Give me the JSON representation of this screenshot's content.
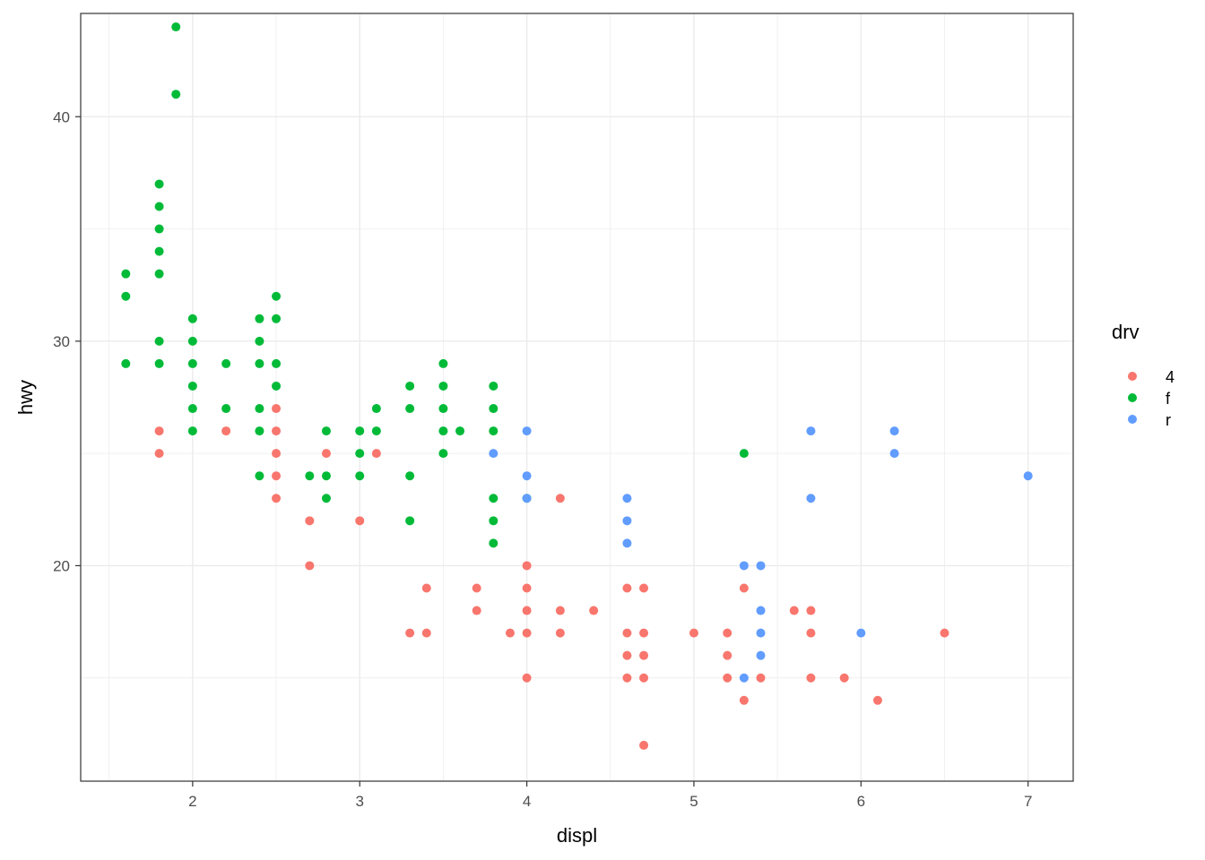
{
  "chart_data": {
    "type": "scatter",
    "xlabel": "displ",
    "ylabel": "hwy",
    "xlim": [
      1.33,
      7.27
    ],
    "ylim": [
      10.4,
      44.6
    ],
    "x_ticks": [
      2,
      3,
      4,
      5,
      6,
      7
    ],
    "y_ticks": [
      20,
      30,
      40
    ],
    "grid": true,
    "legend": {
      "title": "drv",
      "position": "right",
      "entries": [
        {
          "label": "4",
          "color": "#F8766D"
        },
        {
          "label": "f",
          "color": "#00BA38"
        },
        {
          "label": "r",
          "color": "#619CFF"
        }
      ]
    },
    "series": [
      {
        "name": "4",
        "color": "#F8766D",
        "points": [
          [
            1.8,
            26
          ],
          [
            1.8,
            25
          ],
          [
            2.2,
            26
          ],
          [
            2.5,
            27
          ],
          [
            2.5,
            26
          ],
          [
            2.5,
            25
          ],
          [
            2.5,
            24
          ],
          [
            2.5,
            23
          ],
          [
            2.7,
            22
          ],
          [
            2.7,
            20
          ],
          [
            2.8,
            25
          ],
          [
            3.0,
            22
          ],
          [
            3.1,
            25
          ],
          [
            3.3,
            17
          ],
          [
            3.4,
            19
          ],
          [
            3.4,
            17
          ],
          [
            3.7,
            19
          ],
          [
            3.7,
            18
          ],
          [
            3.9,
            17
          ],
          [
            4.0,
            20
          ],
          [
            4.0,
            19
          ],
          [
            4.0,
            18
          ],
          [
            4.0,
            17
          ],
          [
            4.0,
            15
          ],
          [
            4.2,
            23
          ],
          [
            4.2,
            18
          ],
          [
            4.2,
            17
          ],
          [
            4.4,
            18
          ],
          [
            4.6,
            19
          ],
          [
            4.6,
            17
          ],
          [
            4.6,
            16
          ],
          [
            4.6,
            15
          ],
          [
            4.7,
            19
          ],
          [
            4.7,
            17
          ],
          [
            4.7,
            16
          ],
          [
            4.7,
            15
          ],
          [
            4.7,
            12
          ],
          [
            5.0,
            17
          ],
          [
            5.2,
            17
          ],
          [
            5.2,
            16
          ],
          [
            5.2,
            15
          ],
          [
            5.3,
            19
          ],
          [
            5.3,
            14
          ],
          [
            5.4,
            15
          ],
          [
            5.6,
            18
          ],
          [
            5.7,
            18
          ],
          [
            5.7,
            17
          ],
          [
            5.7,
            15
          ],
          [
            5.9,
            15
          ],
          [
            6.1,
            14
          ],
          [
            6.5,
            17
          ]
        ]
      },
      {
        "name": "f",
        "color": "#00BA38",
        "points": [
          [
            1.6,
            33
          ],
          [
            1.6,
            32
          ],
          [
            1.6,
            29
          ],
          [
            1.8,
            37
          ],
          [
            1.8,
            36
          ],
          [
            1.8,
            35
          ],
          [
            1.8,
            34
          ],
          [
            1.8,
            33
          ],
          [
            1.8,
            30
          ],
          [
            1.8,
            29
          ],
          [
            1.9,
            44
          ],
          [
            1.9,
            41
          ],
          [
            2.0,
            31
          ],
          [
            2.0,
            30
          ],
          [
            2.0,
            29
          ],
          [
            2.0,
            28
          ],
          [
            2.0,
            27
          ],
          [
            2.0,
            26
          ],
          [
            2.2,
            29
          ],
          [
            2.2,
            27
          ],
          [
            2.4,
            31
          ],
          [
            2.4,
            30
          ],
          [
            2.4,
            29
          ],
          [
            2.4,
            27
          ],
          [
            2.4,
            26
          ],
          [
            2.4,
            24
          ],
          [
            2.5,
            32
          ],
          [
            2.5,
            31
          ],
          [
            2.5,
            29
          ],
          [
            2.5,
            28
          ],
          [
            2.7,
            24
          ],
          [
            2.8,
            26
          ],
          [
            2.8,
            24
          ],
          [
            2.8,
            23
          ],
          [
            3.0,
            26
          ],
          [
            3.0,
            25
          ],
          [
            3.0,
            24
          ],
          [
            3.1,
            27
          ],
          [
            3.1,
            26
          ],
          [
            3.3,
            28
          ],
          [
            3.3,
            27
          ],
          [
            3.3,
            24
          ],
          [
            3.3,
            22
          ],
          [
            3.5,
            29
          ],
          [
            3.5,
            28
          ],
          [
            3.5,
            27
          ],
          [
            3.5,
            26
          ],
          [
            3.5,
            25
          ],
          [
            3.6,
            26
          ],
          [
            3.8,
            28
          ],
          [
            3.8,
            27
          ],
          [
            3.8,
            26
          ],
          [
            3.8,
            23
          ],
          [
            3.8,
            22
          ],
          [
            3.8,
            21
          ],
          [
            4.0,
            23
          ],
          [
            5.3,
            25
          ]
        ]
      },
      {
        "name": "r",
        "color": "#619CFF",
        "points": [
          [
            3.8,
            25
          ],
          [
            4.0,
            26
          ],
          [
            4.0,
            24
          ],
          [
            4.0,
            23
          ],
          [
            4.6,
            23
          ],
          [
            4.6,
            22
          ],
          [
            4.6,
            21
          ],
          [
            5.3,
            20
          ],
          [
            5.3,
            15
          ],
          [
            5.4,
            20
          ],
          [
            5.4,
            18
          ],
          [
            5.4,
            17
          ],
          [
            5.4,
            16
          ],
          [
            5.7,
            26
          ],
          [
            5.7,
            23
          ],
          [
            6.0,
            17
          ],
          [
            6.2,
            26
          ],
          [
            6.2,
            25
          ],
          [
            7.0,
            24
          ]
        ]
      }
    ]
  }
}
